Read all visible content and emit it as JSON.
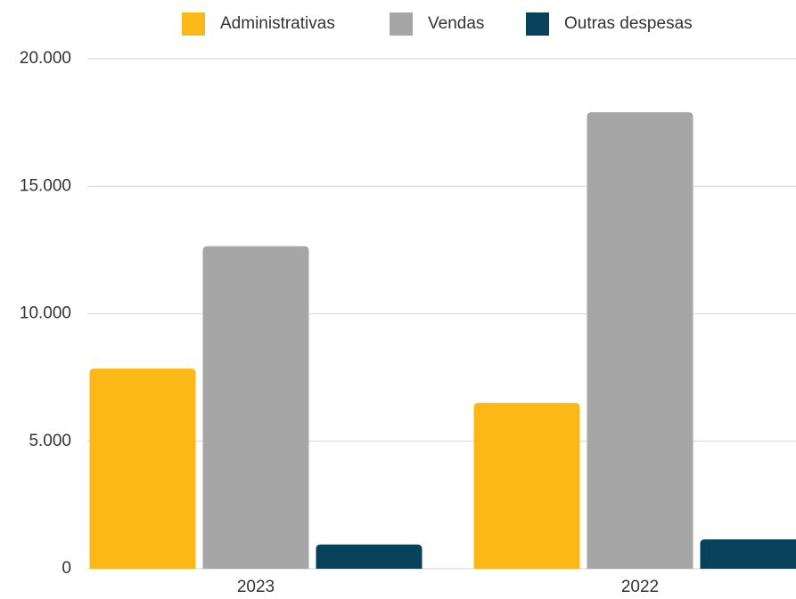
{
  "chart_data": {
    "type": "bar",
    "categories": [
      "2023",
      "2022"
    ],
    "series": [
      {
        "name": "Administrativas",
        "color": "#fbb817",
        "values": [
          7850,
          6500
        ]
      },
      {
        "name": "Vendas",
        "color": "#a6a6a6",
        "values": [
          12650,
          17900
        ]
      },
      {
        "name": "Outras despesas",
        "color": "#07415a",
        "values": [
          950,
          1150
        ]
      }
    ],
    "ylim": [
      0,
      20000
    ],
    "yticks": [
      0,
      {
        "value": 5000,
        "label": "5.000"
      },
      {
        "value": 10000,
        "label": "10.000"
      },
      {
        "value": 15000,
        "label": "15.000"
      },
      {
        "value": 20000,
        "label": "20.000"
      }
    ],
    "grid": true,
    "legend": "top"
  }
}
